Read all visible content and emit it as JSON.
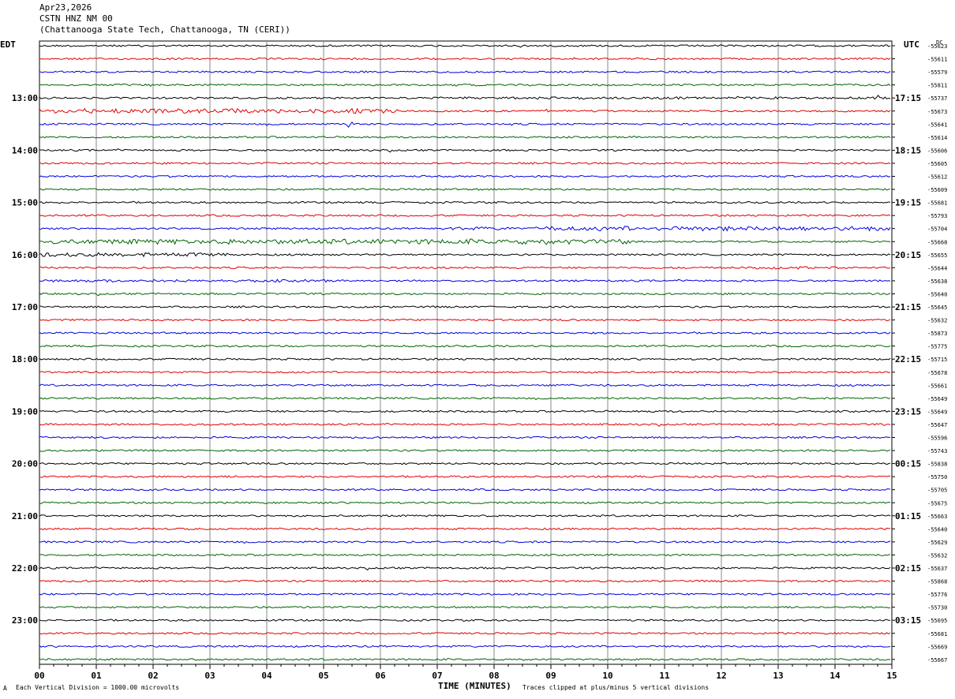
{
  "header": {
    "date": "Apr23,2026",
    "station": "CSTN HNZ NM 00",
    "location": "(Chattanooga State Tech, Chattanooga, TN (CERI))"
  },
  "left_label": "EDT",
  "right_label": "UTC",
  "dc_label": "DC",
  "footer": {
    "scale": "Each Vertical Division = 1000.00 microvolts",
    "xlabel": "TIME (MINUTES)",
    "clip": "Traces clipped at plus/minus 5 vertical divisions",
    "corner": "A"
  },
  "chart_data": {
    "type": "line",
    "title": "CSTN HNZ NM 00",
    "xlabel": "TIME (MINUTES)",
    "xlim": [
      0,
      15
    ],
    "x_ticks": [
      "00",
      "01",
      "02",
      "03",
      "04",
      "05",
      "06",
      "07",
      "08",
      "09",
      "10",
      "11",
      "12",
      "13",
      "14",
      "15"
    ],
    "trace_colors": [
      "#000000",
      "#e00000",
      "#0000e0",
      "#006400"
    ],
    "edt_hour_labels": [
      "13:00",
      "14:00",
      "15:00",
      "16:00",
      "17:00",
      "18:00",
      "19:00",
      "20:00",
      "21:00",
      "22:00",
      "23:00"
    ],
    "utc_hour_labels": [
      "17:15",
      "18:15",
      "19:15",
      "20:15",
      "21:15",
      "22:15",
      "23:15",
      "00:15",
      "01:15",
      "02:15",
      "03:15"
    ],
    "dc_offsets": [
      -55623,
      -55611,
      -55579,
      -55811,
      -55737,
      -55673,
      -55641,
      -55614,
      -55606,
      -55605,
      -55612,
      -55609,
      -55681,
      -55793,
      -55704,
      -55668,
      -55655,
      -55644,
      -55638,
      -55640,
      -55645,
      -55632,
      -55873,
      -55775,
      -55715,
      -55678,
      -55661,
      -55649,
      -55649,
      -55647,
      -55596,
      -55743,
      -55838,
      -55750,
      -55705,
      -55675,
      -55663,
      -55640,
      -55629,
      -55632,
      -55637,
      -55868,
      -55776,
      -55730,
      -55695,
      -55681,
      -55669,
      -55667
    ],
    "events": [
      {
        "trace": 4,
        "x": [
          7.0,
          15.0
        ],
        "amp": 1.6
      },
      {
        "trace": 5,
        "x": [
          0.0,
          6.3
        ],
        "amp": 3.2
      },
      {
        "trace": 6,
        "x": [
          5.4,
          5.5
        ],
        "amp": 4.0
      },
      {
        "trace": 6,
        "x": [
          8.3,
          8.35
        ],
        "amp": 2.0
      },
      {
        "trace": 14,
        "x": [
          7.0,
          8.4
        ],
        "amp": 2.2
      },
      {
        "trace": 14,
        "x": [
          8.7,
          15.0
        ],
        "amp": 3.0
      },
      {
        "trace": 15,
        "x": [
          0.0,
          10.5
        ],
        "amp": 3.4
      },
      {
        "trace": 16,
        "x": [
          0.0,
          3.3
        ],
        "amp": 2.6
      },
      {
        "trace": 17,
        "x": [
          12.6,
          14.1
        ],
        "amp": 1.8
      },
      {
        "trace": 18,
        "x": [
          0.2,
          5.2
        ],
        "amp": 1.8
      }
    ]
  }
}
